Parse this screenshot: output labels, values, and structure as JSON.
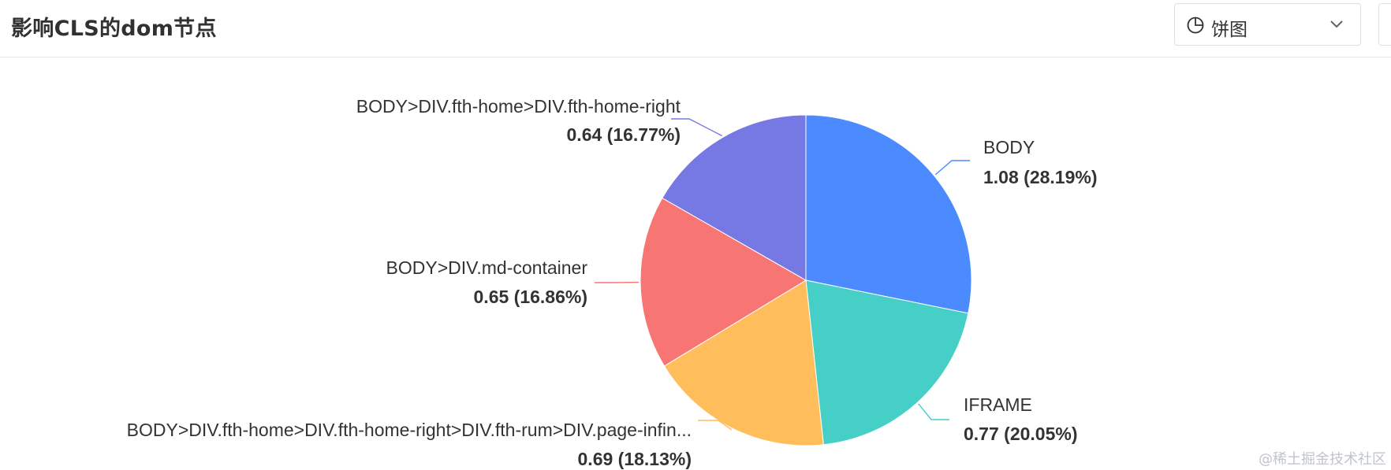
{
  "header": {
    "title": "影响CLS的dom节点",
    "chart_type_select": {
      "selected": "饼图",
      "icon": "pie-chart-icon"
    }
  },
  "watermark": "@稀土掘金技术社区",
  "colors": {
    "slice_1": "#4b8bff",
    "slice_2": "#45cfc6",
    "slice_3": "#ffbd5c",
    "slice_4": "#f77674",
    "slice_5": "#7679e4"
  },
  "chart_data": {
    "type": "pie",
    "start_angle_deg": 90,
    "direction": "clockwise",
    "slices": [
      {
        "name": "BODY",
        "value": 1.08,
        "percent": "28.19%",
        "label_value": "1.08 (28.19%)",
        "color": "#4b8bff"
      },
      {
        "name": "IFRAME",
        "value": 0.77,
        "percent": "20.05%",
        "label_value": "0.77 (20.05%)",
        "color": "#45cfc6"
      },
      {
        "name": "BODY>DIV.fth-home>DIV.fth-home-right>DIV.fth-rum>DIV.page-infin...",
        "value": 0.69,
        "percent": "18.13%",
        "label_value": "0.69 (18.13%)",
        "color": "#ffbd5c"
      },
      {
        "name": "BODY>DIV.md-container",
        "value": 0.65,
        "percent": "16.86%",
        "label_value": "0.65 (16.86%)",
        "color": "#f77674"
      },
      {
        "name": "BODY>DIV.fth-home>DIV.fth-home-right",
        "value": 0.64,
        "percent": "16.77%",
        "label_value": "0.64 (16.77%)",
        "color": "#7679e4"
      }
    ]
  }
}
